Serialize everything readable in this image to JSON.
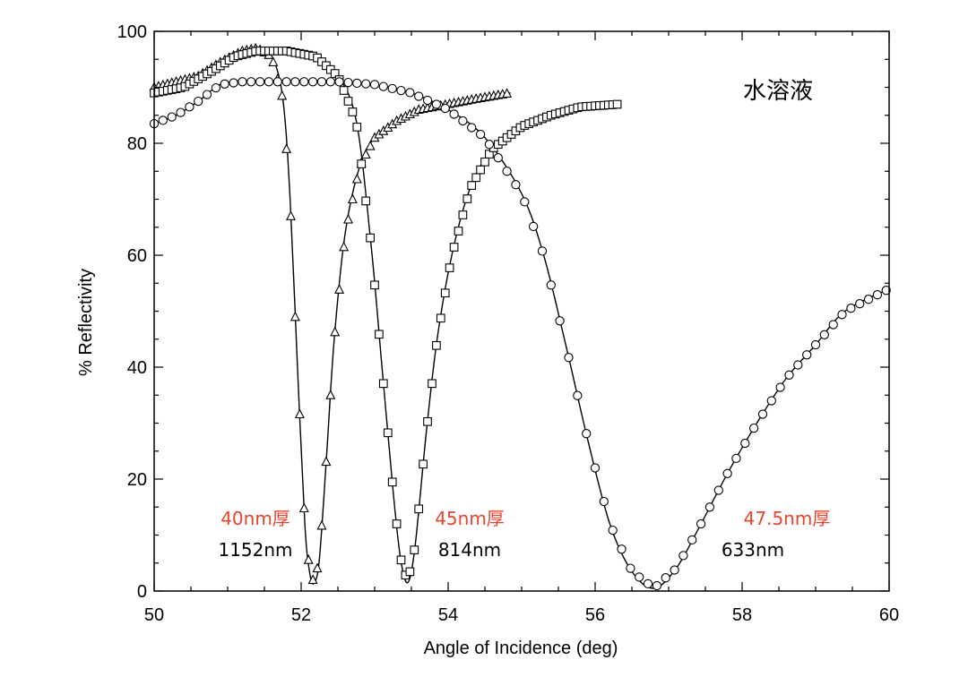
{
  "chart_data": {
    "type": "scatter",
    "title": "水溶液",
    "xlabel": "Angle of Incidence (deg)",
    "ylabel": "% Reflectivity",
    "xlim": [
      50,
      60
    ],
    "ylim": [
      0,
      100
    ],
    "xticks": [
      50,
      52,
      54,
      56,
      58,
      60
    ],
    "yticks": [
      0,
      20,
      40,
      60,
      80,
      100
    ],
    "x_tick_labels": [
      "50",
      "52",
      "54",
      "56",
      "58",
      "60"
    ],
    "y_tick_labels": [
      "0",
      "20",
      "40",
      "60",
      "80",
      "100"
    ],
    "series": [
      {
        "name": "1152nm",
        "thickness_label": "40nm厚",
        "wavelength_label": "1152nm",
        "marker": "triangle",
        "x": [
          50.0,
          50.3,
          50.6,
          50.9,
          51.2,
          51.4,
          51.6,
          51.75,
          51.85,
          51.95,
          52.05,
          52.12,
          52.18,
          52.25,
          52.35,
          52.45,
          52.6,
          52.8,
          53.0,
          53.3,
          53.6,
          54.0,
          54.4,
          54.85
        ],
        "y": [
          90,
          91,
          92,
          94.5,
          96.5,
          97,
          95.5,
          88,
          70,
          40,
          12,
          3,
          1.5,
          6,
          25,
          45,
          64,
          76,
          81,
          84,
          86,
          87,
          88,
          89
        ]
      },
      {
        "name": "814nm",
        "thickness_label": "45nm厚",
        "wavelength_label": "814nm",
        "marker": "square",
        "x": [
          50.0,
          50.4,
          50.8,
          51.1,
          51.4,
          51.8,
          52.2,
          52.5,
          52.75,
          52.95,
          53.1,
          53.25,
          53.35,
          53.45,
          53.55,
          53.7,
          53.85,
          54.05,
          54.3,
          54.6,
          55.0,
          55.4,
          55.8,
          56.35
        ],
        "y": [
          89,
          90,
          93,
          95.5,
          96.5,
          96.5,
          95.5,
          92,
          84,
          62,
          40,
          18,
          6,
          1.5,
          8,
          28,
          45,
          60,
          72,
          79,
          83,
          85,
          86.5,
          87
        ]
      },
      {
        "name": "633nm",
        "thickness_label": "47.5nm厚",
        "wavelength_label": "633nm",
        "marker": "circle",
        "x": [
          50.0,
          50.3,
          50.6,
          50.9,
          51.2,
          51.5,
          52.0,
          52.5,
          53.0,
          53.5,
          54.0,
          54.5,
          55.0,
          55.3,
          55.6,
          55.9,
          56.2,
          56.5,
          56.8,
          57.1,
          57.4,
          57.8,
          58.2,
          58.6,
          59.0,
          59.4,
          60.0
        ],
        "y": [
          83.5,
          85,
          87.5,
          90.5,
          91,
          91,
          91,
          91,
          90.5,
          89,
          86,
          81,
          71,
          60,
          44,
          27,
          12,
          3.5,
          0.5,
          4,
          11,
          21,
          30,
          38,
          44,
          50,
          54
        ]
      }
    ]
  }
}
